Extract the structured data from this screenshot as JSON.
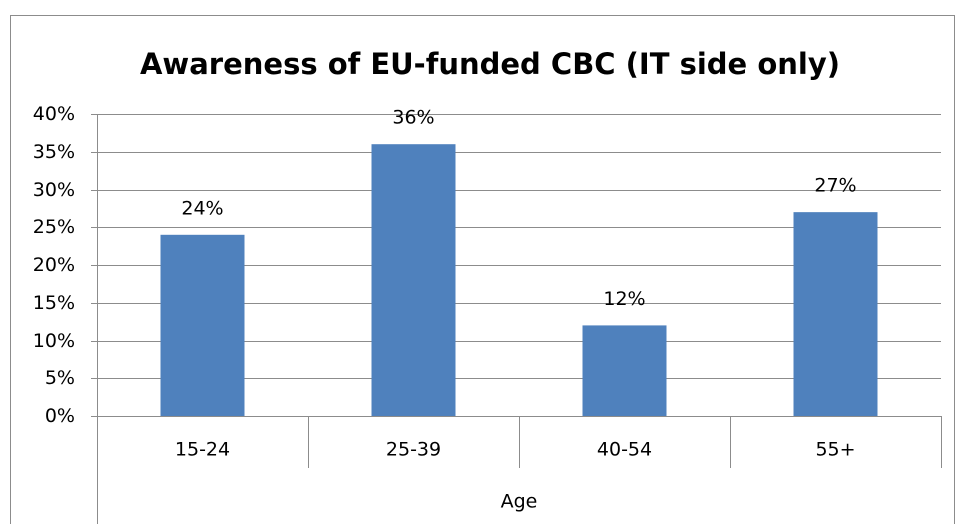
{
  "chart_data": {
    "type": "bar",
    "title": "Awareness of EU-funded CBC (IT side only)",
    "categories": [
      "15-24",
      "25-39",
      "40-54",
      "55+"
    ],
    "values": [
      24,
      36,
      12,
      27
    ],
    "value_labels": [
      "24%",
      "36%",
      "12%",
      "27%"
    ],
    "color": "#4f81bd",
    "xlabel": "Age",
    "ylim": [
      0,
      40
    ],
    "yticks": [
      {
        "value": 0,
        "label": "0%"
      },
      {
        "value": 5,
        "label": "5%"
      },
      {
        "value": 10,
        "label": "10%"
      },
      {
        "value": 15,
        "label": "15%"
      },
      {
        "value": 20,
        "label": "20%"
      },
      {
        "value": 25,
        "label": "25%"
      },
      {
        "value": 30,
        "label": "30%"
      },
      {
        "value": 35,
        "label": "35%"
      },
      {
        "value": 40,
        "label": "40%"
      }
    ],
    "grid": true
  }
}
